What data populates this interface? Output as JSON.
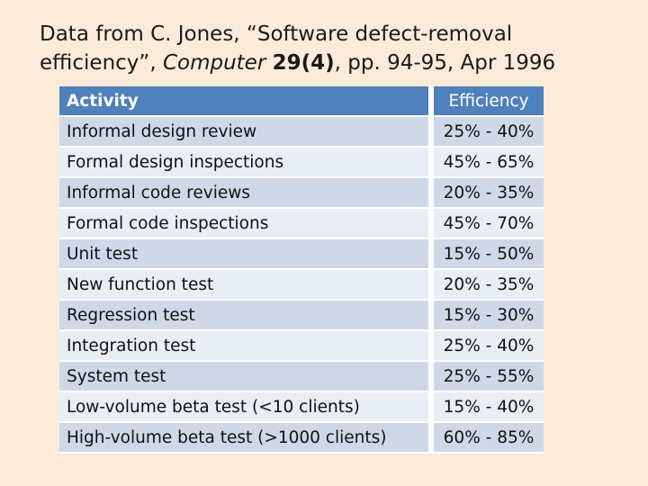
{
  "title": {
    "line1": "Data from C. Jones, “Software defect-removal",
    "line2_prefix": "efficiency”, ",
    "line2_journal": "Computer",
    "line2_volume": "29(4)",
    "line2_suffix": ", pp. 94-95, Apr 1996"
  },
  "table": {
    "headers": {
      "activity": "Activity",
      "efficiency": "Efficiency"
    },
    "rows": [
      {
        "activity": "Informal design review",
        "efficiency": "25% - 40%"
      },
      {
        "activity": "Formal design inspections",
        "efficiency": "45% - 65%"
      },
      {
        "activity": "Informal code reviews",
        "efficiency": "20% - 35%"
      },
      {
        "activity": "Formal code inspections",
        "efficiency": "45% - 70%"
      },
      {
        "activity": "Unit test",
        "efficiency": "15% - 50%"
      },
      {
        "activity": "New function test",
        "efficiency": "20% - 35%"
      },
      {
        "activity": "Regression test",
        "efficiency": "15% - 30%"
      },
      {
        "activity": "Integration test",
        "efficiency": "25% - 40%"
      },
      {
        "activity": "System test",
        "efficiency": "25% - 55%"
      },
      {
        "activity": "Low-volume beta test (<10 clients)",
        "efficiency": "15% - 40%"
      },
      {
        "activity": "High-volume beta test (>1000 clients)",
        "efficiency": "60% - 85%"
      }
    ]
  },
  "colors": {
    "background": "#fcebd9",
    "header": "#4f81bd",
    "row_odd": "#d0d8e8",
    "row_even": "#e9edf4"
  }
}
